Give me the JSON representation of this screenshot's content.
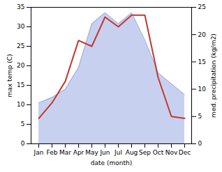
{
  "chart_data": {
    "type": "line",
    "categories": [
      "Jan",
      "Feb",
      "Mar",
      "Apr",
      "May",
      "Jun",
      "Jul",
      "Aug",
      "Sep",
      "Oct",
      "Nov",
      "Dec"
    ],
    "xlabel": "date (month)",
    "ylabel": "max temp (C)",
    "y2label": "med. precipitation (kg/m2)",
    "series": [
      {
        "type": "area",
        "axis": "y2",
        "color": "#c8d0f0",
        "values": [
          7.5,
          8.5,
          10.0,
          14.0,
          22.0,
          24.0,
          22.0,
          24.0,
          19.0,
          13.0,
          11.0,
          9.0
        ]
      },
      {
        "type": "line",
        "axis": "y2",
        "color": "#9aa8dd",
        "values": [
          7.5,
          8.5,
          10.0,
          14.0,
          22.0,
          24.0,
          22.0,
          24.0,
          19.0,
          13.0,
          11.0,
          9.0
        ]
      },
      {
        "type": "line",
        "color": "#c0392b",
        "values": [
          6.5,
          10.5,
          16.0,
          26.5,
          25.0,
          32.5,
          30.0,
          33.0,
          33.0,
          17.0,
          7.0,
          6.5
        ]
      }
    ],
    "ylim": [
      0,
      35
    ],
    "yticks": [
      0,
      5,
      10,
      15,
      20,
      25,
      30,
      35
    ],
    "y2lim": [
      0,
      25
    ],
    "y2ticks": [
      0,
      5,
      10,
      15,
      20,
      25
    ],
    "grid": false
  }
}
